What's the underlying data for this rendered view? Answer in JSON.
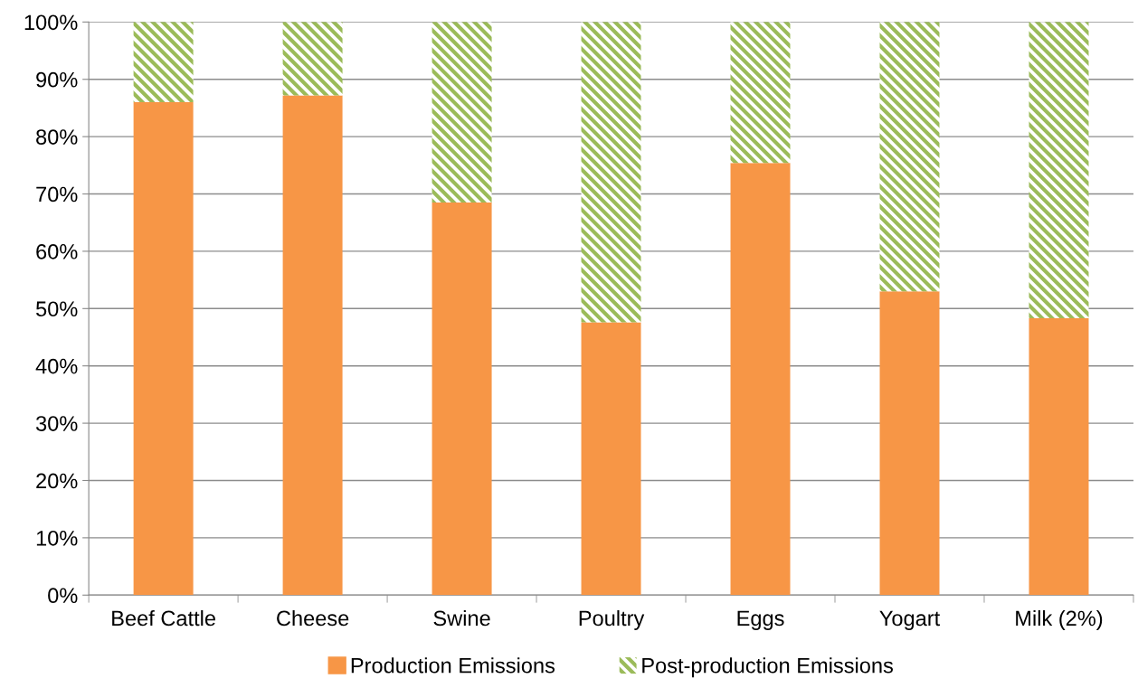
{
  "chart_data": {
    "type": "bar",
    "stacked": true,
    "categories": [
      "Beef Cattle",
      "Cheese",
      "Swine",
      "Poultry",
      "Eggs",
      "Yogart",
      "Milk (2%)"
    ],
    "series": [
      {
        "name": "Production Emissions",
        "color": "#f79646",
        "values": [
          86,
          87.2,
          68.5,
          47.6,
          75.4,
          53,
          48.3
        ]
      },
      {
        "name": "Post-production Emissions",
        "color": "#9bbb59",
        "values": [
          14,
          12.8,
          31.5,
          52.4,
          24.6,
          47,
          51.7
        ]
      }
    ],
    "ylim": [
      0,
      100
    ],
    "yticks": [
      {
        "value": 0,
        "label": "0%"
      },
      {
        "value": 10,
        "label": "10%"
      },
      {
        "value": 20,
        "label": "20%"
      },
      {
        "value": 30,
        "label": "30%"
      },
      {
        "value": 40,
        "label": "40%"
      },
      {
        "value": 50,
        "label": "50%"
      },
      {
        "value": 60,
        "label": "60%"
      },
      {
        "value": 70,
        "label": "70%"
      },
      {
        "value": 80,
        "label": "80%"
      },
      {
        "value": 90,
        "label": "90%"
      },
      {
        "value": 100,
        "label": "100%"
      }
    ],
    "grid": "y",
    "legend": "bottom"
  }
}
